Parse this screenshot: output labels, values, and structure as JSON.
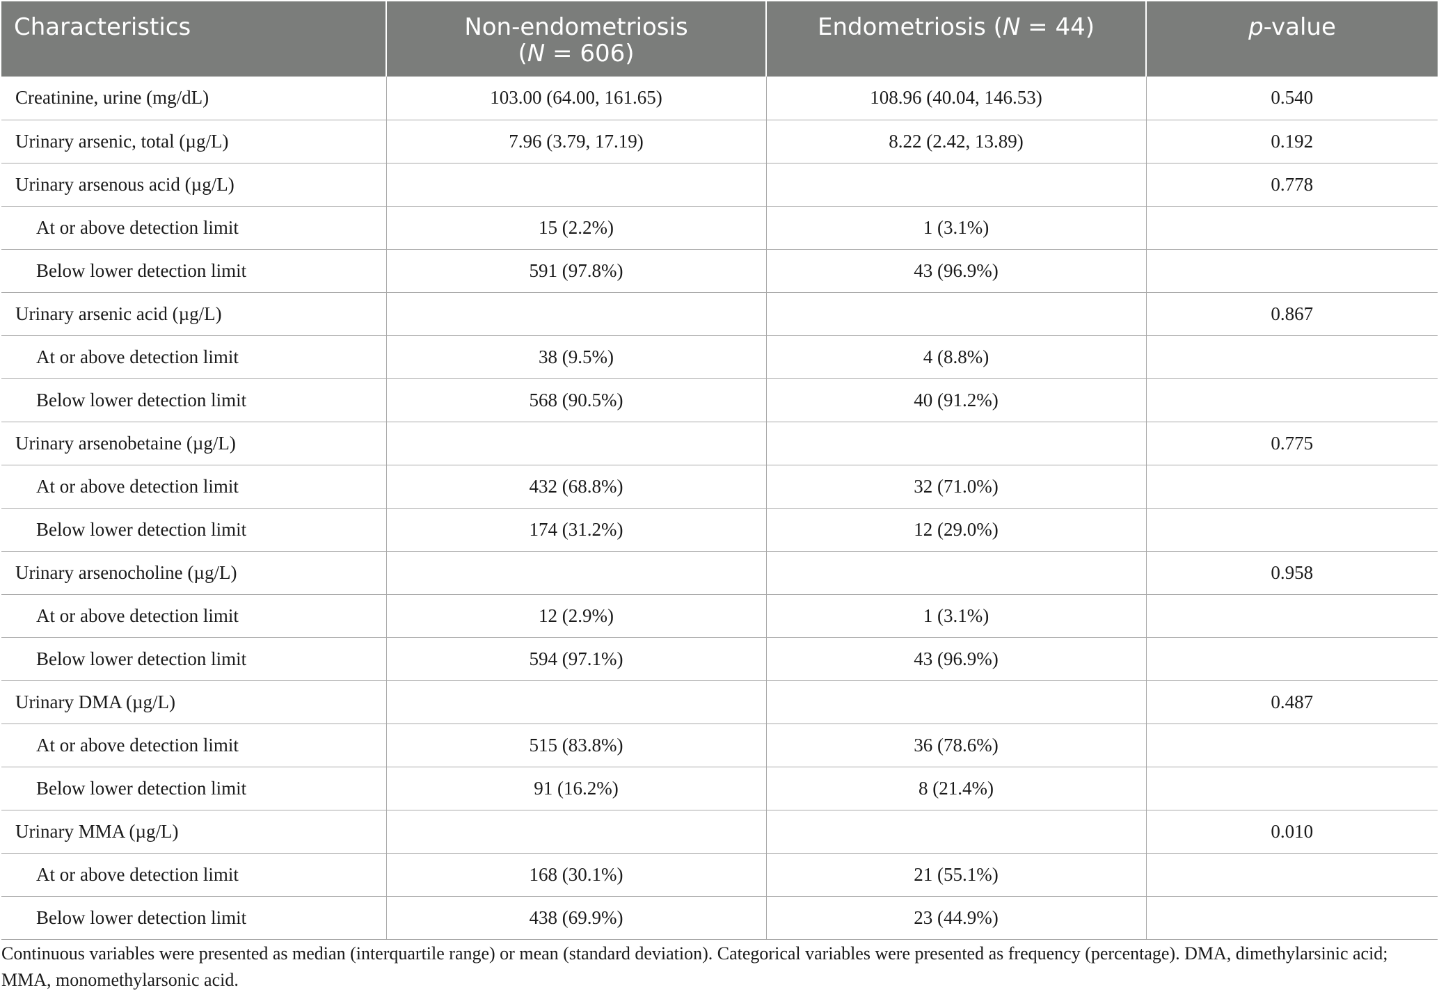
{
  "table": {
    "headers": {
      "characteristics": "Characteristics",
      "non_endo_line1": "Non-endometriosis",
      "non_endo_open": "(",
      "non_endo_n": "N",
      "non_endo_rest": " = 606)",
      "endo_prefix": "Endometriosis (",
      "endo_n": "N",
      "endo_rest": " = 44)",
      "p_italic": "p",
      "p_rest": "-value"
    },
    "rows": [
      {
        "label": "Creatinine, urine (mg/dL)",
        "non_endo": "103.00 (64.00, 161.65)",
        "endo": "108.96 (40.04, 146.53)",
        "p": "0.540"
      },
      {
        "label": "Urinary arsenic, total (µg/L)",
        "non_endo": "7.96 (3.79, 17.19)",
        "endo": "8.22 (2.42, 13.89)",
        "p": "0.192"
      },
      {
        "label": "Urinary arsenous acid (µg/L)",
        "non_endo": "",
        "endo": "",
        "p": "0.778"
      },
      {
        "label": "At or above detection limit",
        "non_endo": "15 (2.2%)",
        "endo": "1 (3.1%)",
        "p": ""
      },
      {
        "label": "Below lower detection limit",
        "non_endo": "591 (97.8%)",
        "endo": "43 (96.9%)",
        "p": ""
      },
      {
        "label": "Urinary arsenic acid (µg/L)",
        "non_endo": "",
        "endo": "",
        "p": "0.867"
      },
      {
        "label": "At or above detection limit",
        "non_endo": "38 (9.5%)",
        "endo": "4 (8.8%)",
        "p": ""
      },
      {
        "label": "Below lower detection limit",
        "non_endo": "568 (90.5%)",
        "endo": "40 (91.2%)",
        "p": ""
      },
      {
        "label": "Urinary arsenobetaine (µg/L)",
        "non_endo": "",
        "endo": "",
        "p": "0.775"
      },
      {
        "label": "At or above detection limit",
        "non_endo": "432 (68.8%)",
        "endo": "32 (71.0%)",
        "p": ""
      },
      {
        "label": "Below lower detection limit",
        "non_endo": "174 (31.2%)",
        "endo": "12 (29.0%)",
        "p": ""
      },
      {
        "label": "Urinary arsenocholine (µg/L)",
        "non_endo": "",
        "endo": "",
        "p": "0.958"
      },
      {
        "label": "At or above detection limit",
        "non_endo": "12 (2.9%)",
        "endo": "1 (3.1%)",
        "p": ""
      },
      {
        "label": "Below lower detection limit",
        "non_endo": "594 (97.1%)",
        "endo": "43 (96.9%)",
        "p": ""
      },
      {
        "label": "Urinary DMA (µg/L)",
        "non_endo": "",
        "endo": "",
        "p": "0.487"
      },
      {
        "label": "At or above detection limit",
        "non_endo": "515 (83.8%)",
        "endo": "36 (78.6%)",
        "p": ""
      },
      {
        "label": "Below lower detection limit",
        "non_endo": "91 (16.2%)",
        "endo": "8 (21.4%)",
        "p": ""
      },
      {
        "label": "Urinary MMA (µg/L)",
        "non_endo": "",
        "endo": "",
        "p": "0.010"
      },
      {
        "label": "At or above detection limit",
        "non_endo": "168 (30.1%)",
        "endo": "21 (55.1%)",
        "p": ""
      },
      {
        "label": "Below lower detection limit",
        "non_endo": "438 (69.9%)",
        "endo": "23 (44.9%)",
        "p": ""
      }
    ]
  },
  "footnote": {
    "text": "Continuous variables were presented as median (interquartile range) or mean (standard deviation). Categorical variables were presented as frequency (percentage). DMA, dimethylarsinic acid; MMA, monomethylarsonic acid."
  },
  "colors": {
    "header_bg": "#7b7d7b",
    "header_text": "#ffffff",
    "grid_line": "#a8a8a8"
  }
}
